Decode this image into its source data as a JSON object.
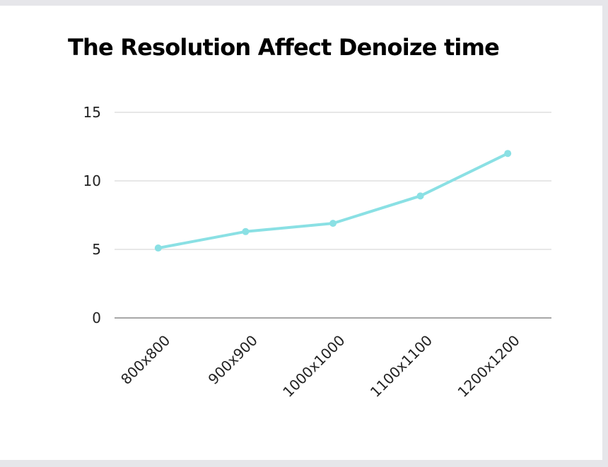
{
  "chart_data": {
    "type": "line",
    "title": "The Resolution Affect Denoize time",
    "xlabel": "",
    "ylabel": "",
    "categories": [
      "800x800",
      "900x900",
      "1000x1000",
      "1100x1100",
      "1200x1200"
    ],
    "series": [
      {
        "values": [
          5.1,
          6.3,
          6.9,
          8.9,
          12.0
        ],
        "color": "#8ae0e4"
      }
    ],
    "ylim": [
      0,
      15
    ],
    "yticks": [
      0,
      5,
      10,
      15
    ],
    "grid": true,
    "legend": "none"
  },
  "colors": {
    "page_background": "#e6e6ea",
    "card_background": "#ffffff",
    "gridline": "#cfcfcf",
    "baseline": "#8a8a8a",
    "text": "#000000"
  }
}
